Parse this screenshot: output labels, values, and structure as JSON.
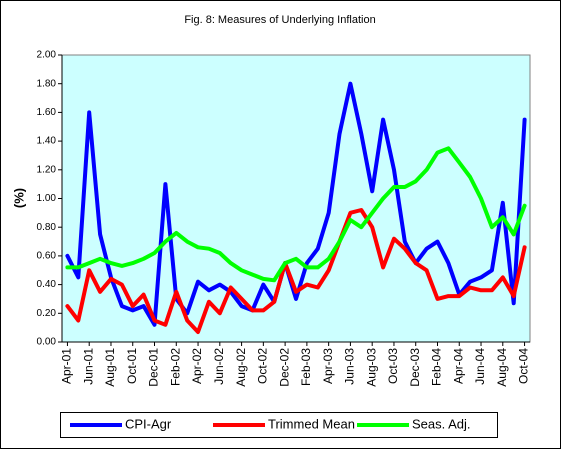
{
  "chart_data": {
    "type": "line",
    "title": "Fig. 8: Measures  of Underlying Inflation",
    "y_label": "(%)",
    "categories": [
      "Apr-01",
      null,
      "Jun-01",
      null,
      "Aug-01",
      null,
      "Oct-01",
      null,
      "Dec-01",
      null,
      "Feb-02",
      null,
      "Apr-02",
      null,
      "Jun-02",
      null,
      "Aug-02",
      null,
      "Oct-02",
      null,
      "Dec-02",
      null,
      "Feb-03",
      null,
      "Apr-03",
      null,
      "Jun-03",
      null,
      "Aug-03",
      null,
      "Oct-03",
      null,
      "Dec-03",
      null,
      "Feb-04",
      null,
      "Apr-04",
      null,
      "Jun-04",
      null,
      "Aug-04",
      null,
      "Oct-04"
    ],
    "series": [
      {
        "name": "CPI-Agr",
        "color": "#0000ff",
        "values": [
          0.6,
          0.45,
          1.6,
          0.75,
          0.45,
          0.25,
          0.22,
          0.25,
          0.12,
          1.1,
          0.3,
          0.2,
          0.42,
          0.36,
          0.4,
          0.35,
          0.25,
          0.22,
          0.4,
          0.28,
          0.55,
          0.3,
          0.55,
          0.65,
          0.9,
          1.45,
          1.8,
          1.45,
          1.05,
          1.55,
          1.2,
          0.7,
          0.55,
          0.65,
          0.7,
          0.55,
          0.33,
          0.42,
          0.45,
          0.5,
          0.97,
          0.27,
          1.55
        ]
      },
      {
        "name": "Trimmed Mean",
        "color": "#ff0000",
        "values": [
          0.25,
          0.15,
          0.5,
          0.35,
          0.44,
          0.4,
          0.25,
          0.33,
          0.15,
          0.12,
          0.35,
          0.15,
          0.07,
          0.28,
          0.2,
          0.38,
          0.3,
          0.22,
          0.22,
          0.28,
          0.55,
          0.35,
          0.4,
          0.38,
          0.5,
          0.7,
          0.9,
          0.92,
          0.8,
          0.52,
          0.72,
          0.65,
          0.55,
          0.5,
          0.3,
          0.32,
          0.32,
          0.38,
          0.36,
          0.36,
          0.45,
          0.32,
          0.66
        ]
      },
      {
        "name": "Seas. Adj.",
        "color": "#00ff00",
        "values": [
          0.52,
          0.52,
          0.55,
          0.58,
          0.55,
          0.53,
          0.55,
          0.58,
          0.62,
          0.7,
          0.76,
          0.7,
          0.66,
          0.65,
          0.62,
          0.55,
          0.5,
          0.47,
          0.44,
          0.43,
          0.55,
          0.58,
          0.52,
          0.52,
          0.58,
          0.7,
          0.85,
          0.8,
          0.9,
          1.0,
          1.08,
          1.08,
          1.12,
          1.2,
          1.32,
          1.35,
          1.25,
          1.15,
          1.0,
          0.8,
          0.87,
          0.75,
          0.95
        ]
      }
    ],
    "ylim": [
      0,
      2
    ],
    "yticks": [
      {
        "value": 0,
        "label": "0.00"
      },
      {
        "value": 0.2,
        "label": "0.20"
      },
      {
        "value": 0.4,
        "label": "0.40"
      },
      {
        "value": 0.6,
        "label": "0.60"
      },
      {
        "value": 0.8,
        "label": "0.80"
      },
      {
        "value": 1.0,
        "label": "1.00"
      },
      {
        "value": 1.2,
        "label": "1.20"
      },
      {
        "value": 1.4,
        "label": "1.40"
      },
      {
        "value": 1.6,
        "label": "1.60"
      },
      {
        "value": 1.8,
        "label": "1.80"
      },
      {
        "value": 2.0,
        "label": "2.00"
      }
    ],
    "grid": false,
    "legend": "bottom",
    "plot_background": "#ccffff"
  }
}
